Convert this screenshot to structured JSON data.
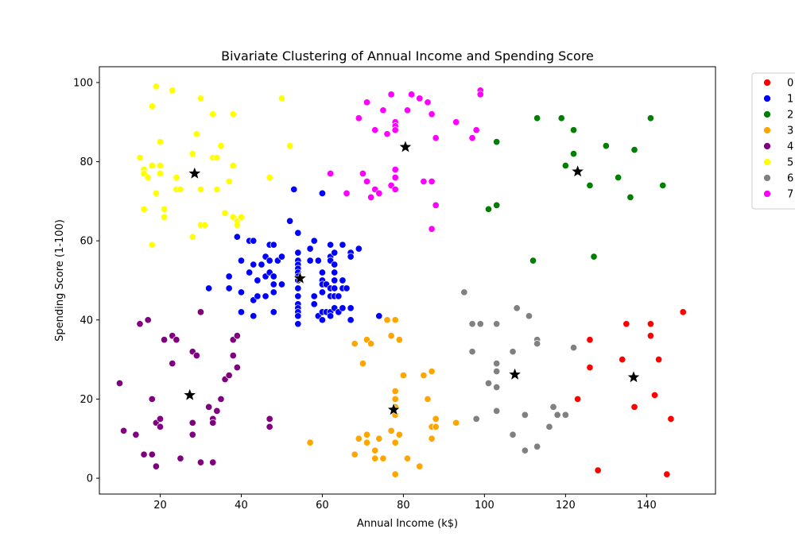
{
  "chart_data": {
    "type": "scatter",
    "title": "Bivariate Clustering of Annual Income and Spending Score",
    "xlabel": "Annual Income (k$)",
    "ylabel": "Spending Score (1-100)",
    "xlim": [
      5,
      157
    ],
    "ylim": [
      -4,
      104
    ],
    "xticks": [
      20,
      40,
      60,
      80,
      100,
      120,
      140
    ],
    "yticks": [
      0,
      20,
      40,
      60,
      80,
      100
    ],
    "grid": false,
    "legend_position": "outside-right-top",
    "series": [
      {
        "name": "0",
        "color": "#ff0000",
        "points": [
          [
            126,
            35
          ],
          [
            126,
            28
          ],
          [
            123,
            20
          ],
          [
            128,
            2
          ],
          [
            134,
            30
          ],
          [
            135,
            39
          ],
          [
            137,
            18
          ],
          [
            141,
            39
          ],
          [
            141,
            36
          ],
          [
            142,
            21
          ],
          [
            143,
            30
          ],
          [
            145,
            1
          ],
          [
            146,
            15
          ],
          [
            149,
            42
          ]
        ]
      },
      {
        "name": "1",
        "color": "#0000ff",
        "points": [
          [
            39,
            61
          ],
          [
            40,
            55
          ],
          [
            40,
            47
          ],
          [
            40,
            42
          ],
          [
            37,
            51
          ],
          [
            37,
            48
          ],
          [
            32,
            48
          ],
          [
            42,
            52
          ],
          [
            42,
            60
          ],
          [
            43,
            60
          ],
          [
            43,
            54
          ],
          [
            43,
            45
          ],
          [
            43,
            41
          ],
          [
            44,
            50
          ],
          [
            44,
            46
          ],
          [
            45,
            54
          ],
          [
            46,
            51
          ],
          [
            46,
            46
          ],
          [
            46,
            56
          ],
          [
            47,
            52
          ],
          [
            47,
            55
          ],
          [
            47,
            59
          ],
          [
            48,
            59
          ],
          [
            48,
            51
          ],
          [
            48,
            49
          ],
          [
            48,
            47
          ],
          [
            48,
            42
          ],
          [
            49,
            55
          ],
          [
            50,
            49
          ],
          [
            50,
            56
          ],
          [
            52,
            65
          ],
          [
            53,
            73
          ],
          [
            54,
            62
          ],
          [
            54,
            57
          ],
          [
            54,
            55
          ],
          [
            54,
            54
          ],
          [
            54,
            53
          ],
          [
            54,
            52
          ],
          [
            54,
            51
          ],
          [
            54,
            50
          ],
          [
            54,
            48
          ],
          [
            54,
            46
          ],
          [
            54,
            44
          ],
          [
            54,
            43
          ],
          [
            54,
            42
          ],
          [
            54,
            41
          ],
          [
            54,
            39
          ],
          [
            57,
            58
          ],
          [
            57,
            55
          ],
          [
            58,
            60
          ],
          [
            58,
            46
          ],
          [
            58,
            44
          ],
          [
            59,
            55
          ],
          [
            59,
            41
          ],
          [
            60,
            72
          ],
          [
            60,
            52
          ],
          [
            60,
            50
          ],
          [
            60,
            49
          ],
          [
            60,
            47
          ],
          [
            60,
            42
          ],
          [
            60,
            40
          ],
          [
            61,
            49
          ],
          [
            61,
            42
          ],
          [
            62,
            59
          ],
          [
            62,
            56
          ],
          [
            62,
            55
          ],
          [
            62,
            48
          ],
          [
            62,
            46
          ],
          [
            62,
            42
          ],
          [
            62,
            41
          ],
          [
            63,
            52
          ],
          [
            63,
            50
          ],
          [
            63,
            48
          ],
          [
            63,
            46
          ],
          [
            63,
            43
          ],
          [
            63,
            54
          ],
          [
            63,
            57
          ],
          [
            64,
            46
          ],
          [
            64,
            42
          ],
          [
            65,
            59
          ],
          [
            65,
            50
          ],
          [
            65,
            48
          ],
          [
            65,
            43
          ],
          [
            66,
            48
          ],
          [
            67,
            57
          ],
          [
            67,
            56
          ],
          [
            67,
            43
          ],
          [
            67,
            40
          ],
          [
            69,
            58
          ],
          [
            71,
            35
          ],
          [
            74,
            41
          ]
        ]
      },
      {
        "name": "2",
        "color": "#008000",
        "points": [
          [
            101,
            68
          ],
          [
            103,
            69
          ],
          [
            103,
            85
          ],
          [
            112,
            55
          ],
          [
            113,
            91
          ],
          [
            119,
            91
          ],
          [
            120,
            79
          ],
          [
            122,
            88
          ],
          [
            122,
            82
          ],
          [
            126,
            74
          ],
          [
            127,
            56
          ],
          [
            130,
            84
          ],
          [
            133,
            76
          ],
          [
            136,
            71
          ],
          [
            137,
            83
          ],
          [
            141,
            91
          ],
          [
            144,
            74
          ]
        ]
      },
      {
        "name": "3",
        "color": "#ffa500",
        "points": [
          [
            57,
            9
          ],
          [
            68,
            34
          ],
          [
            68,
            6
          ],
          [
            69,
            10
          ],
          [
            70,
            29
          ],
          [
            71,
            35
          ],
          [
            71,
            9
          ],
          [
            71,
            11
          ],
          [
            72,
            34
          ],
          [
            73,
            7
          ],
          [
            73,
            5
          ],
          [
            74,
            10
          ],
          [
            75,
            5
          ],
          [
            76,
            40
          ],
          [
            77,
            36
          ],
          [
            77,
            12
          ],
          [
            78,
            40
          ],
          [
            78,
            22
          ],
          [
            78,
            20
          ],
          [
            78,
            18
          ],
          [
            78,
            16
          ],
          [
            78,
            9
          ],
          [
            78,
            1
          ],
          [
            79,
            35
          ],
          [
            79,
            11
          ],
          [
            80,
            26
          ],
          [
            81,
            5
          ],
          [
            84,
            3
          ],
          [
            85,
            26
          ],
          [
            86,
            20
          ],
          [
            87,
            27
          ],
          [
            87,
            13
          ],
          [
            87,
            10
          ],
          [
            88,
            15
          ],
          [
            88,
            13
          ],
          [
            93,
            14
          ]
        ]
      },
      {
        "name": "4",
        "color": "#800080",
        "points": [
          [
            10,
            24
          ],
          [
            11,
            12
          ],
          [
            14,
            11
          ],
          [
            15,
            39
          ],
          [
            16,
            6
          ],
          [
            17,
            40
          ],
          [
            18,
            20
          ],
          [
            18,
            6
          ],
          [
            19,
            3
          ],
          [
            19,
            14
          ],
          [
            20,
            15
          ],
          [
            20,
            13
          ],
          [
            21,
            35
          ],
          [
            23,
            36
          ],
          [
            23,
            29
          ],
          [
            24,
            35
          ],
          [
            25,
            5
          ],
          [
            28,
            32
          ],
          [
            28,
            14
          ],
          [
            28,
            11
          ],
          [
            29,
            31
          ],
          [
            30,
            42
          ],
          [
            30,
            4
          ],
          [
            32,
            18
          ],
          [
            33,
            15
          ],
          [
            33,
            14
          ],
          [
            33,
            4
          ],
          [
            34,
            17
          ],
          [
            35,
            20
          ],
          [
            36,
            25
          ],
          [
            37,
            26
          ],
          [
            38,
            35
          ],
          [
            38,
            31
          ],
          [
            39,
            36
          ],
          [
            39,
            28
          ],
          [
            47,
            15
          ],
          [
            47,
            13
          ]
        ]
      },
      {
        "name": "5",
        "color": "#ffff00",
        "points": [
          [
            15,
            81
          ],
          [
            16,
            78
          ],
          [
            16,
            77
          ],
          [
            16,
            68
          ],
          [
            17,
            76
          ],
          [
            18,
            94
          ],
          [
            18,
            79
          ],
          [
            18,
            59
          ],
          [
            19,
            99
          ],
          [
            19,
            72
          ],
          [
            20,
            85
          ],
          [
            20,
            79
          ],
          [
            20,
            77
          ],
          [
            21,
            68
          ],
          [
            21,
            66
          ],
          [
            23,
            98
          ],
          [
            24,
            76
          ],
          [
            24,
            73
          ],
          [
            25,
            73
          ],
          [
            28,
            82
          ],
          [
            28,
            61
          ],
          [
            29,
            87
          ],
          [
            30,
            96
          ],
          [
            30,
            73
          ],
          [
            30,
            64
          ],
          [
            31,
            64
          ],
          [
            33,
            92
          ],
          [
            33,
            81
          ],
          [
            34,
            81
          ],
          [
            34,
            73
          ],
          [
            35,
            84
          ],
          [
            36,
            67
          ],
          [
            37,
            75
          ],
          [
            38,
            92
          ],
          [
            38,
            79
          ],
          [
            38,
            66
          ],
          [
            39,
            65
          ],
          [
            39,
            64
          ],
          [
            40,
            66
          ],
          [
            47,
            76
          ],
          [
            50,
            96
          ],
          [
            52,
            84
          ]
        ]
      },
      {
        "name": "6",
        "color": "#808080",
        "points": [
          [
            95,
            47
          ],
          [
            97,
            39
          ],
          [
            97,
            32
          ],
          [
            98,
            15
          ],
          [
            99,
            39
          ],
          [
            101,
            24
          ],
          [
            103,
            39
          ],
          [
            103,
            29
          ],
          [
            103,
            27
          ],
          [
            103,
            23
          ],
          [
            103,
            17
          ],
          [
            107,
            32
          ],
          [
            107,
            11
          ],
          [
            108,
            43
          ],
          [
            110,
            16
          ],
          [
            110,
            7
          ],
          [
            111,
            41
          ],
          [
            113,
            35
          ],
          [
            113,
            34
          ],
          [
            113,
            8
          ],
          [
            116,
            13
          ],
          [
            117,
            18
          ],
          [
            118,
            16
          ],
          [
            120,
            16
          ],
          [
            122,
            33
          ]
        ]
      },
      {
        "name": "7",
        "color": "#ff00ff",
        "points": [
          [
            69,
            91
          ],
          [
            70,
            77
          ],
          [
            71,
            95
          ],
          [
            71,
            75
          ],
          [
            72,
            71
          ],
          [
            73,
            88
          ],
          [
            73,
            73
          ],
          [
            74,
            72
          ],
          [
            75,
            93
          ],
          [
            76,
            87
          ],
          [
            77,
            97
          ],
          [
            77,
            74
          ],
          [
            78,
            90
          ],
          [
            78,
            89
          ],
          [
            78,
            88
          ],
          [
            78,
            78
          ],
          [
            78,
            76
          ],
          [
            78,
            73
          ],
          [
            81,
            93
          ],
          [
            82,
            97
          ],
          [
            84,
            96
          ],
          [
            85,
            75
          ],
          [
            86,
            95
          ],
          [
            87,
            92
          ],
          [
            87,
            75
          ],
          [
            87,
            63
          ],
          [
            88,
            86
          ],
          [
            88,
            69
          ],
          [
            93,
            90
          ],
          [
            97,
            86
          ],
          [
            98,
            88
          ],
          [
            99,
            98
          ],
          [
            99,
            97
          ],
          [
            62,
            77
          ],
          [
            66,
            72
          ]
        ]
      }
    ],
    "centroids": {
      "marker": "star",
      "color": "#000000",
      "points": [
        [
          136.8,
          25.5
        ],
        [
          54.5,
          50.5
        ],
        [
          123,
          77.5
        ],
        [
          77.6,
          17.3
        ],
        [
          27.3,
          21
        ],
        [
          28.5,
          77
        ],
        [
          107.5,
          26.2
        ],
        [
          80.5,
          83.7
        ]
      ]
    }
  }
}
